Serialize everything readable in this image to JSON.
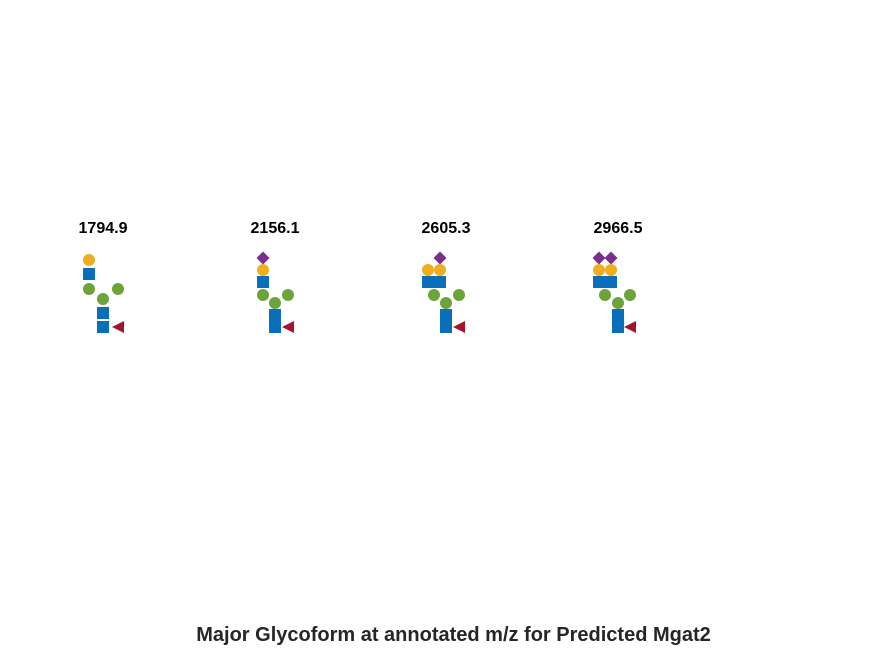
{
  "glycans": [
    {
      "mz": "1794.9",
      "residues": [
        "galactose",
        "glcnac",
        "mannose",
        "mannose",
        "mannose",
        "glcnac",
        "glcnac",
        "fucose"
      ]
    },
    {
      "mz": "2156.1",
      "residues": [
        "sialic-acid",
        "galactose",
        "glcnac",
        "mannose",
        "mannose",
        "mannose",
        "glcnac",
        "glcnac",
        "fucose"
      ]
    },
    {
      "mz": "2605.3",
      "residues": [
        "sialic-acid",
        "galactose",
        "galactose",
        "glcnac",
        "glcnac",
        "mannose",
        "mannose",
        "mannose",
        "glcnac",
        "glcnac",
        "fucose"
      ]
    },
    {
      "mz": "2966.5",
      "residues": [
        "sialic-acid",
        "sialic-acid",
        "galactose",
        "galactose",
        "glcnac",
        "glcnac",
        "mannose",
        "mannose",
        "mannose",
        "glcnac",
        "glcnac",
        "fucose"
      ]
    }
  ],
  "caption": "Major Glycoform at annotated m/z for Predicted Mgat2",
  "colors": {
    "glcnac": "#0a6fba",
    "mannose": "#6ca33b",
    "galactose": "#f0ad1e",
    "sialic-acid": "#7b2e8c",
    "fucose": "#a6132e"
  }
}
